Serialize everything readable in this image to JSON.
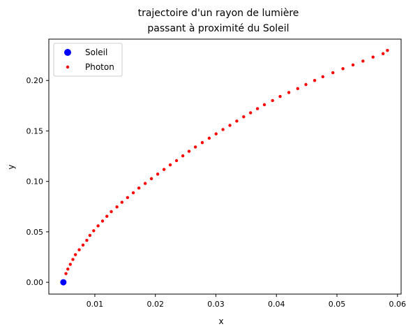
{
  "chart_data": {
    "type": "scatter",
    "title_lines": [
      "trajectoire d'un rayon de lumière",
      "passant à proximité du Soleil"
    ],
    "xlabel": "x",
    "ylabel": "y",
    "xlim": [
      0.0024,
      0.0606
    ],
    "ylim": [
      -0.0117,
      0.241
    ],
    "x_ticks": [
      {
        "value": 0.01,
        "label": "0.01"
      },
      {
        "value": 0.02,
        "label": "0.02"
      },
      {
        "value": 0.03,
        "label": "0.03"
      },
      {
        "value": 0.04,
        "label": "0.04"
      },
      {
        "value": 0.05,
        "label": "0.05"
      },
      {
        "value": 0.06,
        "label": "0.06"
      }
    ],
    "y_ticks": [
      {
        "value": 0.0,
        "label": "0.00"
      },
      {
        "value": 0.05,
        "label": "0.05"
      },
      {
        "value": 0.1,
        "label": "0.10"
      },
      {
        "value": 0.15,
        "label": "0.15"
      },
      {
        "value": 0.2,
        "label": "0.20"
      }
    ],
    "grid": false,
    "legend_position": "top-left",
    "series": [
      {
        "name": "Soleil",
        "color": "#0000ff",
        "marker": "large-circle",
        "points": [
          [
            0.0048,
            0.0
          ]
        ]
      },
      {
        "name": "Photon",
        "color": "#ff0000",
        "marker": "small-dot",
        "points": [
          [
            0.00523,
            0.00862
          ],
          [
            0.00554,
            0.0131
          ],
          [
            0.00595,
            0.0178
          ],
          [
            0.00637,
            0.0226
          ],
          [
            0.0068,
            0.0274
          ],
          [
            0.00742,
            0.0322
          ],
          [
            0.00805,
            0.0369
          ],
          [
            0.00867,
            0.0416
          ],
          [
            0.00919,
            0.0465
          ],
          [
            0.00981,
            0.0511
          ],
          [
            0.01054,
            0.0559
          ],
          [
            0.01127,
            0.0607
          ],
          [
            0.01199,
            0.0654
          ],
          [
            0.01272,
            0.07
          ],
          [
            0.01365,
            0.0747
          ],
          [
            0.01448,
            0.0793
          ],
          [
            0.01541,
            0.084
          ],
          [
            0.01635,
            0.0887
          ],
          [
            0.01728,
            0.0934
          ],
          [
            0.01832,
            0.098
          ],
          [
            0.01935,
            0.1027
          ],
          [
            0.02039,
            0.1072
          ],
          [
            0.02143,
            0.1118
          ],
          [
            0.02246,
            0.1163
          ],
          [
            0.0235,
            0.1206
          ],
          [
            0.02454,
            0.1253
          ],
          [
            0.02557,
            0.1298
          ],
          [
            0.02661,
            0.1341
          ],
          [
            0.02775,
            0.1384
          ],
          [
            0.02889,
            0.1428
          ],
          [
            0.03003,
            0.1471
          ],
          [
            0.03117,
            0.1514
          ],
          [
            0.03231,
            0.1555
          ],
          [
            0.03345,
            0.1598
          ],
          [
            0.03459,
            0.164
          ],
          [
            0.03573,
            0.168
          ],
          [
            0.03687,
            0.1721
          ],
          [
            0.03801,
            0.176
          ],
          [
            0.03936,
            0.1801
          ],
          [
            0.04061,
            0.1842
          ],
          [
            0.04206,
            0.1881
          ],
          [
            0.04352,
            0.192
          ],
          [
            0.04487,
            0.196
          ],
          [
            0.04632,
            0.2
          ],
          [
            0.04767,
            0.2037
          ],
          [
            0.04933,
            0.2077
          ],
          [
            0.05099,
            0.2117
          ],
          [
            0.05265,
            0.2154
          ],
          [
            0.0543,
            0.2192
          ],
          [
            0.05596,
            0.2232
          ],
          [
            0.05762,
            0.2266
          ],
          [
            0.05834,
            0.2298
          ]
        ]
      }
    ]
  }
}
